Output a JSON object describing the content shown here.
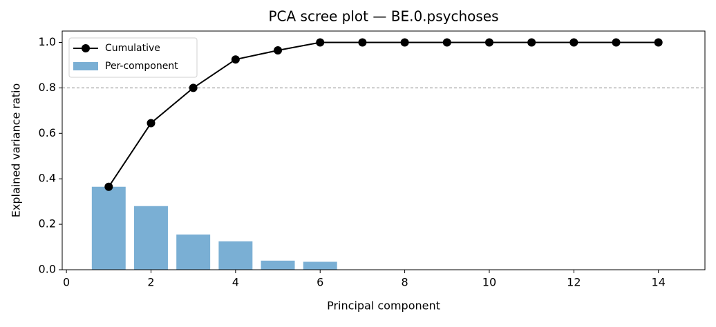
{
  "chart_data": {
    "type": "bar",
    "title": "PCA scree plot — BE.0.psychoses",
    "xlabel": "Principal component",
    "ylabel": "Explained variance ratio",
    "x": [
      1,
      2,
      3,
      4,
      5,
      6,
      7,
      8,
      9,
      10,
      11,
      12,
      13,
      14
    ],
    "series": [
      {
        "name": "Per-component",
        "type": "bar",
        "color": "#7aafd4",
        "values": [
          0.365,
          0.28,
          0.155,
          0.125,
          0.04,
          0.035,
          0,
          0,
          0,
          0,
          0,
          0,
          0,
          0
        ]
      },
      {
        "name": "Cumulative",
        "type": "line",
        "color": "#000000",
        "values": [
          0.365,
          0.645,
          0.8,
          0.925,
          0.965,
          1.0,
          1.0,
          1.0,
          1.0,
          1.0,
          1.0,
          1.0,
          1.0,
          1.0
        ]
      }
    ],
    "hline": {
      "value": 0.8,
      "color": "#808080"
    },
    "xlim": [
      -0.1,
      15.1
    ],
    "xticks": [
      0,
      2,
      4,
      6,
      8,
      10,
      12,
      14
    ],
    "ylim": [
      0,
      1.05
    ],
    "yticks": [
      {
        "value": 0,
        "label": "0.0"
      },
      {
        "value": 0.2,
        "label": "0.2"
      },
      {
        "value": 0.4,
        "label": "0.4"
      },
      {
        "value": 0.6,
        "label": "0.6"
      },
      {
        "value": 0.8,
        "label": "0.8"
      },
      {
        "value": 1.0,
        "label": "1.0"
      }
    ],
    "grid": false,
    "legend": "upper left"
  }
}
